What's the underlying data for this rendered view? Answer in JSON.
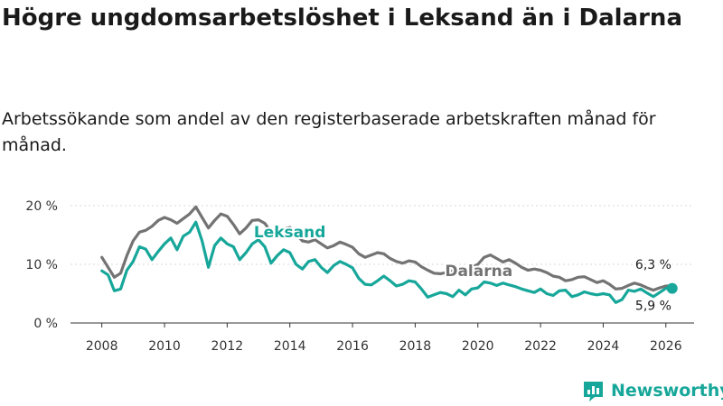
{
  "title": "Högre ungdomsarbetslöshet i Leksand än i Dalarna",
  "subtitle": "Arbetssökande som andel av den registerbaserade arbetskraften månad för månad.",
  "brand": {
    "name": "Newsworthy",
    "color": "#17a79a"
  },
  "chart_data": {
    "type": "line",
    "x_ticks": [
      "2008",
      "2010",
      "2012",
      "2014",
      "2016",
      "2018",
      "2020",
      "2022",
      "2024",
      "2026"
    ],
    "y_ticks": [
      "0 %",
      "10 %",
      "20 %"
    ],
    "ylim": [
      0,
      20
    ],
    "xlim": [
      2007.0,
      2026.9
    ],
    "grid": true,
    "series": [
      {
        "name": "Dalarna",
        "label": "Dalarna",
        "color": "#737373",
        "end_label": "6,3 %",
        "x": [
          2008.0,
          2008.2,
          2008.4,
          2008.6,
          2008.8,
          2009.0,
          2009.2,
          2009.4,
          2009.6,
          2009.8,
          2010.0,
          2010.2,
          2010.4,
          2010.6,
          2010.8,
          2011.0,
          2011.2,
          2011.4,
          2011.6,
          2011.8,
          2012.0,
          2012.2,
          2012.4,
          2012.6,
          2012.8,
          2013.0,
          2013.2,
          2013.4,
          2013.6,
          2013.8,
          2014.0,
          2014.2,
          2014.4,
          2014.6,
          2014.8,
          2015.0,
          2015.2,
          2015.4,
          2015.6,
          2015.8,
          2016.0,
          2016.2,
          2016.4,
          2016.6,
          2016.8,
          2017.0,
          2017.2,
          2017.4,
          2017.6,
          2017.8,
          2018.0,
          2018.2,
          2018.4,
          2018.6,
          2018.8,
          2019.0,
          2019.2,
          2019.4,
          2019.6,
          2019.8,
          2020.0,
          2020.2,
          2020.4,
          2020.6,
          2020.8,
          2021.0,
          2021.2,
          2021.4,
          2021.6,
          2021.8,
          2022.0,
          2022.2,
          2022.4,
          2022.6,
          2022.8,
          2023.0,
          2023.2,
          2023.4,
          2023.6,
          2023.8,
          2024.0,
          2024.2,
          2024.4,
          2024.6,
          2024.8,
          2025.0,
          2025.2,
          2025.4,
          2025.6,
          2025.8,
          2026.0,
          2026.2
        ],
        "values": [
          11.2,
          9.5,
          7.8,
          8.5,
          11.5,
          14.0,
          15.5,
          15.8,
          16.5,
          17.5,
          18.0,
          17.6,
          17.0,
          17.8,
          18.6,
          19.8,
          18.0,
          16.2,
          17.5,
          18.6,
          18.2,
          16.8,
          15.2,
          16.2,
          17.5,
          17.6,
          17.0,
          15.5,
          15.2,
          16.0,
          16.3,
          15.2,
          14.0,
          13.8,
          14.2,
          13.5,
          12.8,
          13.2,
          13.8,
          13.4,
          12.9,
          11.8,
          11.2,
          11.6,
          12.0,
          11.8,
          11.0,
          10.5,
          10.2,
          10.6,
          10.4,
          9.6,
          9.0,
          8.5,
          8.4,
          8.6,
          8.9,
          8.6,
          9.0,
          9.5,
          10.0,
          11.2,
          11.6,
          11.0,
          10.4,
          10.8,
          10.2,
          9.5,
          9.0,
          9.2,
          9.0,
          8.6,
          8.0,
          7.8,
          7.2,
          7.4,
          7.8,
          7.9,
          7.4,
          6.9,
          7.2,
          6.6,
          5.8,
          5.9,
          6.4,
          6.8,
          6.5,
          6.0,
          5.6,
          6.0,
          6.3,
          6.3
        ]
      },
      {
        "name": "Leksand",
        "label": "Leksand",
        "color": "#17a79a",
        "end_label": "5,9 %",
        "x": [
          2008.0,
          2008.2,
          2008.4,
          2008.6,
          2008.8,
          2009.0,
          2009.2,
          2009.4,
          2009.6,
          2009.8,
          2010.0,
          2010.2,
          2010.4,
          2010.6,
          2010.8,
          2011.0,
          2011.2,
          2011.4,
          2011.6,
          2011.8,
          2012.0,
          2012.2,
          2012.4,
          2012.6,
          2012.8,
          2013.0,
          2013.2,
          2013.4,
          2013.6,
          2013.8,
          2014.0,
          2014.2,
          2014.4,
          2014.6,
          2014.8,
          2015.0,
          2015.2,
          2015.4,
          2015.6,
          2015.8,
          2016.0,
          2016.2,
          2016.4,
          2016.6,
          2016.8,
          2017.0,
          2017.2,
          2017.4,
          2017.6,
          2017.8,
          2018.0,
          2018.2,
          2018.4,
          2018.6,
          2018.8,
          2019.0,
          2019.2,
          2019.4,
          2019.6,
          2019.8,
          2020.0,
          2020.2,
          2020.4,
          2020.6,
          2020.8,
          2021.0,
          2021.2,
          2021.4,
          2021.6,
          2021.8,
          2022.0,
          2022.2,
          2022.4,
          2022.6,
          2022.8,
          2023.0,
          2023.2,
          2023.4,
          2023.6,
          2023.8,
          2024.0,
          2024.2,
          2024.4,
          2024.6,
          2024.8,
          2025.0,
          2025.2,
          2025.4,
          2025.6,
          2025.8,
          2026.0,
          2026.2
        ],
        "values": [
          8.9,
          8.2,
          5.5,
          5.8,
          9.0,
          10.5,
          13.0,
          12.6,
          10.8,
          12.2,
          13.5,
          14.5,
          12.5,
          14.8,
          15.5,
          17.2,
          14.0,
          9.5,
          13.2,
          14.5,
          13.5,
          13.0,
          10.8,
          12.0,
          13.5,
          14.2,
          13.0,
          10.2,
          11.5,
          12.5,
          12.0,
          10.0,
          9.2,
          10.5,
          10.8,
          9.5,
          8.6,
          9.8,
          10.5,
          10.0,
          9.4,
          7.6,
          6.6,
          6.5,
          7.2,
          8.0,
          7.2,
          6.3,
          6.6,
          7.2,
          7.0,
          5.8,
          4.4,
          4.8,
          5.2,
          5.0,
          4.5,
          5.6,
          4.8,
          5.8,
          6.0,
          7.0,
          6.8,
          6.4,
          6.8,
          6.5,
          6.2,
          5.8,
          5.5,
          5.2,
          5.8,
          5.0,
          4.7,
          5.5,
          5.6,
          4.5,
          4.8,
          5.3,
          5.0,
          4.8,
          5.0,
          4.8,
          3.5,
          4.0,
          5.6,
          5.4,
          5.8,
          5.1,
          4.5,
          5.2,
          5.9,
          5.9
        ]
      }
    ]
  }
}
